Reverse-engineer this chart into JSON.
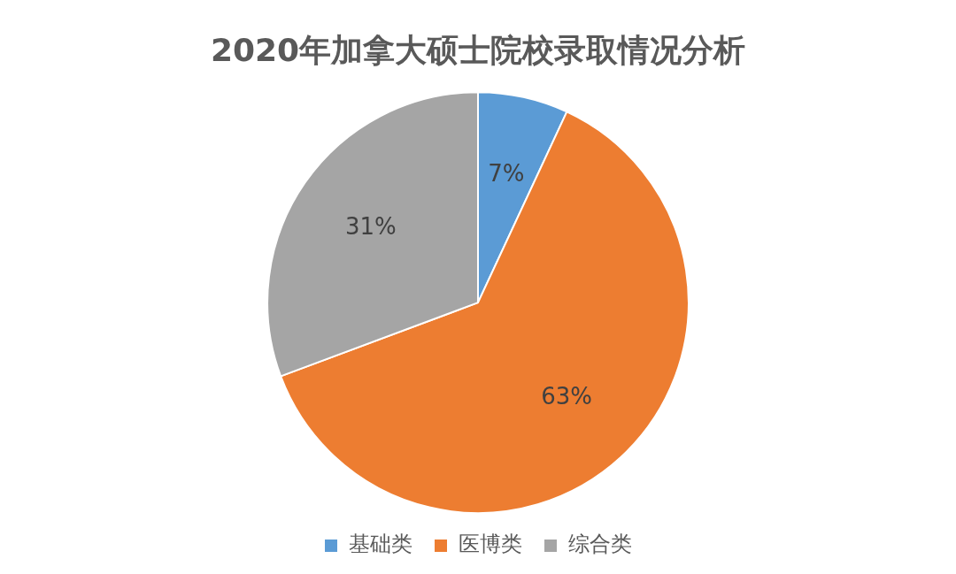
{
  "chart_data": {
    "type": "pie",
    "title": "2020年加拿大硕士院校录取情况分析",
    "categories": [
      "基础类",
      "医博类",
      "综合类"
    ],
    "values": [
      7,
      63,
      31
    ],
    "colors": [
      "#5b9bd5",
      "#ed7d31",
      "#a5a5a5"
    ],
    "value_labels": [
      "7%",
      "63%",
      "31%"
    ],
    "legend": "bottom"
  }
}
